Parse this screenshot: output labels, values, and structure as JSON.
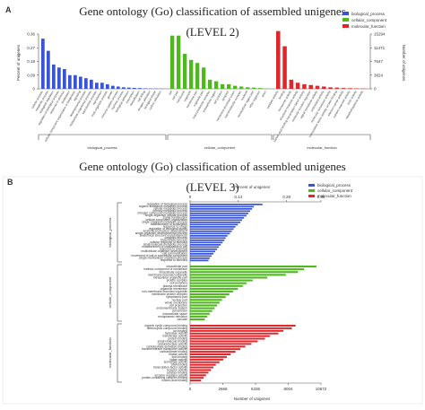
{
  "panelA": {
    "letter": "A",
    "title": "Gene ontology (Go) classification of assembled unigenes",
    "subtitle": "(LEVEL 2)",
    "yleft_label": "Percent of unigenes",
    "yright_label": "Number of unigenes",
    "yleft_ticks": [
      "0.36",
      "0.27",
      "0.18",
      "0.09",
      "0"
    ],
    "yright_ticks": [
      "15294",
      "11471",
      "7647",
      "3824",
      "0"
    ],
    "groups": [
      "biological_process",
      "cellular_component",
      "molecular_function"
    ]
  },
  "panelB": {
    "letter": "B",
    "title": "Gene ontology (Go) classification of assembled unigenes",
    "subtitle": "(LEVEL 3)",
    "top_label": "Percent of unigenes",
    "top_ticks": [
      "0",
      "0.14",
      "0.28",
      "0.38"
    ],
    "bottom_ticks": [
      "0",
      "2668",
      "5336",
      "8004",
      "10672"
    ],
    "xlabel": "Number of unigenes",
    "groups": [
      "biological_process",
      "cellular_component",
      "molecular_function"
    ]
  },
  "legend": [
    "biological_process",
    "cellular_component",
    "molecular_function"
  ],
  "colors": {
    "bp": "#3a55d4",
    "cc": "#4fb81f",
    "mf": "#e0262a"
  },
  "chart_data": [
    {
      "type": "bar",
      "title": "Gene ontology (Go) classification of assembled unigenes",
      "subtitle": "(LEVEL 2)",
      "ylabel": "Percent of unigenes",
      "ylim": [
        0,
        0.36
      ],
      "y2label": "Number of unigenes",
      "y2lim": [
        0,
        15294
      ],
      "series": [
        {
          "name": "biological_process",
          "categories": [
            "cellular process",
            "metabolic process",
            "biological regulation",
            "regulation of biological process",
            "response to stimulus",
            "localization",
            "cellular component organization or biogenesis",
            "signaling",
            "developmental process",
            "multicellular organismal process",
            "reproductive process",
            "reproduction",
            "multi-organism process",
            "growth",
            "immune system process",
            "rhythmic process",
            "biological adhesion",
            "locomotion",
            "detoxification",
            "cell killing",
            "nitrogen utilization",
            "biological phase",
            "carbon utilization"
          ],
          "values": [
            0.33,
            0.25,
            0.16,
            0.14,
            0.13,
            0.09,
            0.09,
            0.08,
            0.07,
            0.06,
            0.04,
            0.04,
            0.03,
            0.02,
            0.015,
            0.01,
            0.008,
            0.006,
            0.005,
            0.003,
            0.002,
            0.002,
            0.001
          ]
        },
        {
          "name": "cellular_component",
          "categories": [
            "cell",
            "cell part",
            "membrane",
            "organelle",
            "membrane part",
            "organelle part",
            "macromolecular complex",
            "extracellular region",
            "cell junction",
            "symplast",
            "membrane-enclosed lumen",
            "supramolecular complex",
            "nucleoid",
            "extracellular region part",
            "other organism",
            "virion"
          ],
          "values": [
            0.35,
            0.35,
            0.23,
            0.19,
            0.17,
            0.14,
            0.06,
            0.05,
            0.03,
            0.03,
            0.02,
            0.015,
            0.01,
            0.008,
            0.005,
            0.002
          ]
        },
        {
          "name": "molecular_function",
          "categories": [
            "catalytic activity",
            "binding",
            "transporter activity",
            "structural molecule activity",
            "nucleic acid binding transcription factor activity",
            "molecular function regulator",
            "signal transducer activity",
            "antioxidant activity",
            "molecular transducer activity",
            "transcription factor activity, protein binding",
            "electron carrier activity",
            "nutrient reservoir activity",
            "toxin activity",
            "metallochaperone activity"
          ],
          "values": [
            0.38,
            0.28,
            0.06,
            0.04,
            0.03,
            0.025,
            0.02,
            0.015,
            0.01,
            0.008,
            0.005,
            0.004,
            0.003,
            0.002
          ]
        }
      ]
    },
    {
      "type": "bar",
      "title": "Gene ontology (Go) classification of assembled unigenes",
      "subtitle": "(LEVEL 3)",
      "xlabel": "Number of unigenes",
      "xlim": [
        0,
        10672
      ],
      "x2label": "Percent of unigenes",
      "x2lim": [
        0,
        0.38
      ],
      "orientation": "horizontal",
      "series": [
        {
          "name": "biological_process",
          "categories": [
            "regulation of biological process",
            "organic substance metabolic process",
            "cellular metabolic process",
            "primary metabolic process",
            "nitrogen compound metabolic process",
            "single-organism cellular process",
            "signal transduction",
            "cellular component organization",
            "single-organism metabolic process",
            "establishment of localization",
            "response to stress",
            "regulation of biological quality",
            "anatomical structure development",
            "single-organism developmental process",
            "anatomical structure morphogenesis",
            "catabolic process",
            "biosynthetic process",
            "cellular response to stimulus",
            "small molecule metabolic process",
            "establishment of localization in cell",
            "response to chemical",
            "multicellular organism development",
            "cell communication",
            "movement of cell or subcellular component",
            "single-multicellular organism process",
            "response to stimulus"
          ],
          "values": [
            5900,
            5200,
            5050,
            4900,
            4750,
            4600,
            4400,
            4250,
            4100,
            3900,
            3700,
            3550,
            3400,
            3250,
            3050,
            2900,
            2800,
            2650,
            2500,
            2350,
            2200,
            2050,
            1900,
            1750,
            1600,
            1500
          ]
        },
        {
          "name": "cellular_component",
          "categories": [
            "intracellular part",
            "intrinsic component of membrane",
            "intracellular organelle",
            "membrane-bounded organelle",
            "intracellular organelle part",
            "protein complex",
            "cell periphery",
            "plasma membrane",
            "organelle membrane",
            "non-membrane-bounded organelle",
            "membrane protein complex",
            "cytoplasmic part",
            "nuclear part",
            "whole membrane",
            "cell projection",
            "endomembrane system",
            "cell junction",
            "extracellular space",
            "endoplasmic reticulum",
            "vacuole"
          ],
          "values": [
            10300,
            9300,
            8800,
            7800,
            6300,
            5100,
            4600,
            4300,
            3900,
            3500,
            3200,
            2900,
            2600,
            2400,
            2200,
            2000,
            1800,
            1600,
            1400,
            1200
          ]
        },
        {
          "name": "molecular_function",
          "categories": [
            "organic cyclic compound binding",
            "heterocyclic compound binding",
            "ion binding",
            "hydrolase activity",
            "transferase activity",
            "protein binding",
            "small molecule binding",
            "oxidoreductase activity",
            "carbohydrate derivative binding",
            "transmembrane transporter activity",
            "carbohydrate binding",
            "kinase activity",
            "lipid binding",
            "ligase activity",
            "isomerase activity",
            "DNA binding",
            "transcription factor activity",
            "receptor activity",
            "cofactor binding",
            "enzyme regulator activity",
            "protein-containing complex binding",
            "nucleic acid binding"
          ],
          "values": [
            8600,
            8300,
            7600,
            7200,
            6500,
            6100,
            5500,
            5000,
            4500,
            4100,
            3700,
            3300,
            3000,
            2700,
            2400,
            2100,
            1900,
            1700,
            1500,
            1300,
            1100,
            900
          ]
        }
      ]
    }
  ]
}
